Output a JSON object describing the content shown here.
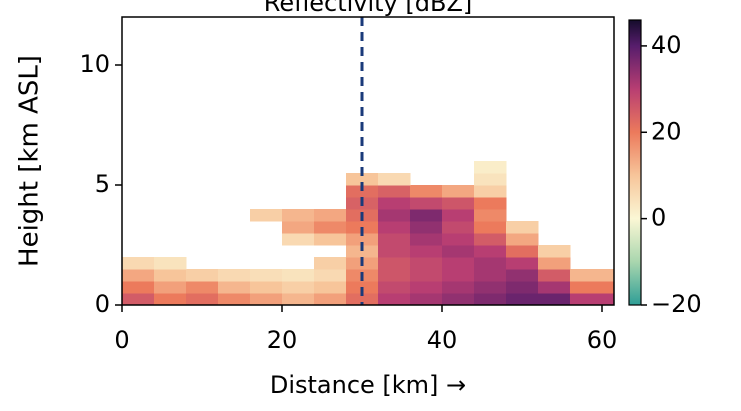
{
  "chart_data": {
    "type": "heatmap",
    "title": "Reflectivity [dBZ]",
    "x_label": "Distance [km] →",
    "y_label": "Height [km ASL]",
    "xlim": [
      0,
      61.5
    ],
    "ylim": [
      0,
      12
    ],
    "xticks": [
      0,
      20,
      40,
      60
    ],
    "yticks": [
      0,
      5,
      10
    ],
    "x_edges": [
      0,
      4,
      8,
      12,
      16,
      20,
      24,
      28,
      32,
      36,
      40,
      44,
      48,
      52,
      56,
      61.5
    ],
    "y_edges": [
      0,
      0.5,
      1,
      1.5,
      2,
      2.5,
      3,
      3.5,
      4,
      4.5,
      5,
      5.5,
      6
    ],
    "z": [
      [
        25,
        20,
        22,
        18,
        15,
        12,
        15,
        22,
        30,
        32,
        34,
        36,
        38,
        38,
        30
      ],
      [
        20,
        15,
        18,
        12,
        10,
        8,
        10,
        20,
        28,
        30,
        32,
        34,
        36,
        32,
        20
      ],
      [
        14,
        10,
        8,
        6,
        5,
        4,
        6,
        18,
        26,
        28,
        30,
        32,
        34,
        25,
        12
      ],
      [
        6,
        4,
        null,
        null,
        null,
        null,
        8,
        15,
        26,
        28,
        30,
        32,
        30,
        15,
        null
      ],
      [
        null,
        null,
        null,
        null,
        null,
        null,
        null,
        12,
        28,
        30,
        32,
        30,
        22,
        8,
        null
      ],
      [
        null,
        null,
        null,
        null,
        null,
        6,
        10,
        15,
        28,
        32,
        30,
        25,
        14,
        null,
        null
      ],
      [
        null,
        null,
        null,
        null,
        null,
        14,
        18,
        20,
        30,
        34,
        28,
        20,
        8,
        null,
        null
      ],
      [
        null,
        null,
        null,
        null,
        8,
        12,
        14,
        22,
        32,
        36,
        30,
        18,
        null,
        null,
        null
      ],
      [
        null,
        null,
        null,
        null,
        null,
        null,
        null,
        24,
        30,
        28,
        26,
        20,
        null,
        null,
        null
      ],
      [
        null,
        null,
        null,
        null,
        null,
        null,
        null,
        22,
        24,
        18,
        14,
        8,
        null,
        null,
        null
      ],
      [
        null,
        null,
        null,
        null,
        null,
        null,
        null,
        10,
        6,
        null,
        null,
        4,
        null,
        null,
        null
      ],
      [
        null,
        null,
        null,
        null,
        null,
        null,
        null,
        null,
        null,
        null,
        null,
        2,
        null,
        null,
        null
      ]
    ],
    "zlim": [
      -20,
      46
    ],
    "zticks": [
      {
        "value": -20,
        "label": "−20"
      },
      0,
      20,
      40
    ],
    "colormap": [
      {
        "value": -20,
        "color": "#2e9e96"
      },
      {
        "value": -10,
        "color": "#a9d6ae"
      },
      {
        "value": 0,
        "color": "#fbf7d5"
      },
      {
        "value": 10,
        "color": "#f7c59a"
      },
      {
        "value": 20,
        "color": "#ec7a5c"
      },
      {
        "value": 30,
        "color": "#b83e72"
      },
      {
        "value": 40,
        "color": "#571d6c"
      },
      {
        "value": 46,
        "color": "#150c2c"
      }
    ],
    "marker_x": 30,
    "marker_color": "#1a3a7a"
  }
}
